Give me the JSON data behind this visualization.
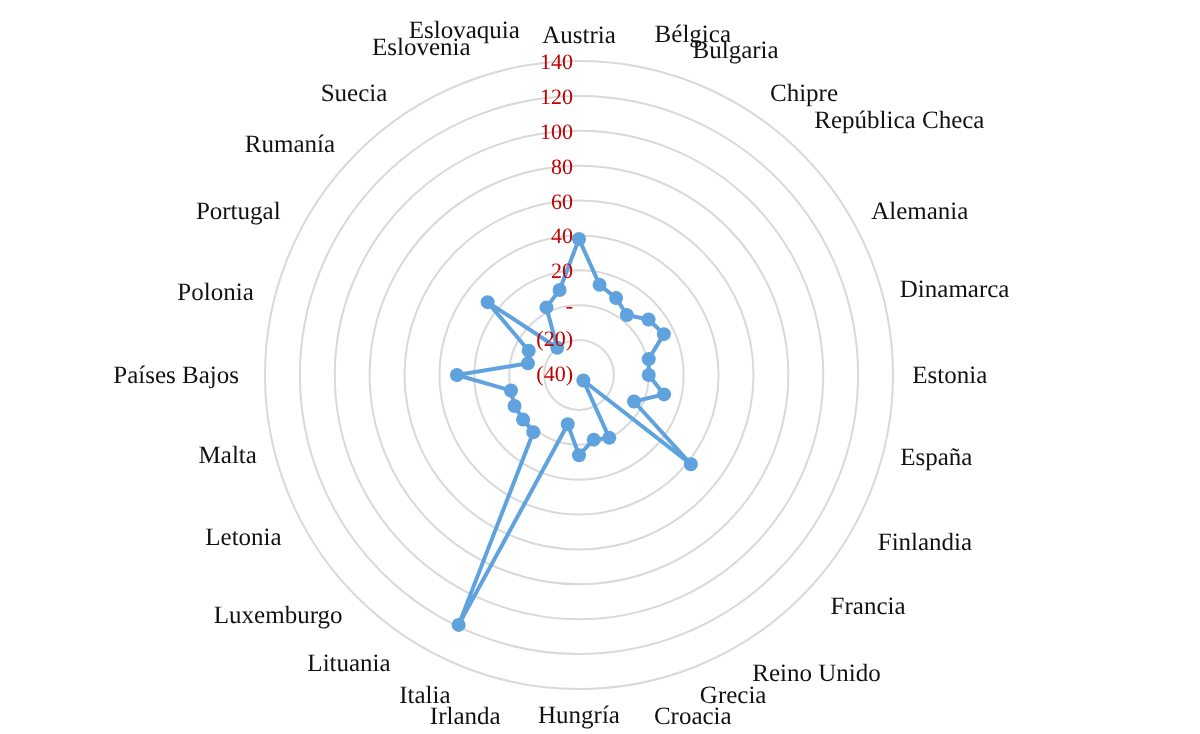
{
  "chart_data": {
    "type": "radar",
    "categories": [
      "Austria",
      "Bélgica",
      "Bulgaria",
      "Chipre",
      "República Checa",
      "Alemania",
      "Dinamarca",
      "Estonia",
      "España",
      "Finlandia",
      "Francia",
      "Reino Unido",
      "Grecia",
      "Croacia",
      "Hungría",
      "Irlanda",
      "Italia",
      "Lituania",
      "Luxemburgo",
      "Letonia",
      "Malta",
      "Países Bajos",
      "Polonia",
      "Portugal",
      "Rumanía",
      "Suecia",
      "Eslovenia",
      "Eslovaquia"
    ],
    "series": [
      {
        "color": "#5fa2dd",
        "values": [
          38,
          13,
          9,
          4,
          11,
          14,
          1,
          0,
          10,
          -5,
          42,
          -36,
          0,
          -2,
          6,
          -11,
          119,
          2,
          1,
          1,
          0,
          30,
          -10,
          -8,
          27,
          -20,
          3,
          10
        ]
      }
    ],
    "ylim": [
      -40,
      140
    ],
    "yticks": [
      {
        "value": -40,
        "label": "(40)"
      },
      {
        "value": -20,
        "label": "(20)"
      },
      {
        "value": 0,
        "label": "-"
      },
      20,
      40,
      60,
      80,
      100,
      120,
      140
    ],
    "grid": true,
    "marker": "circle",
    "line_style": "solid"
  }
}
